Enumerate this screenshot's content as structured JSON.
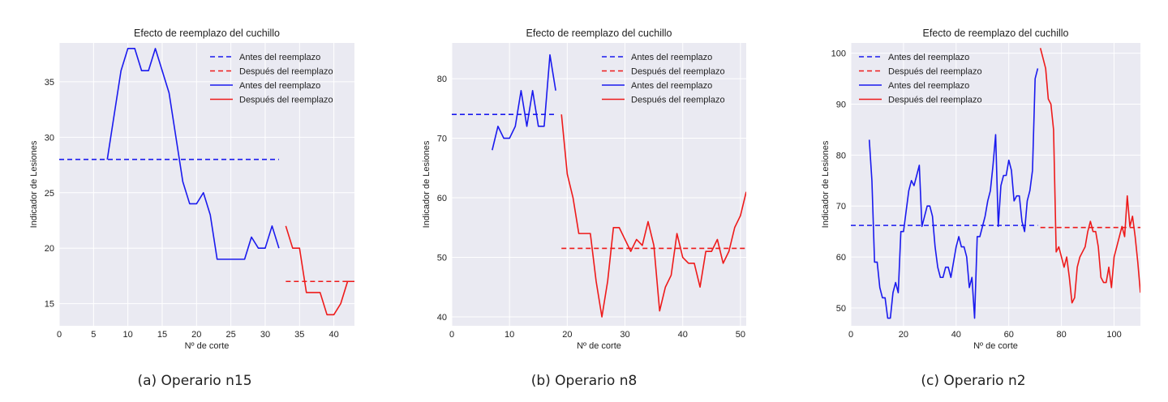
{
  "chart_data": [
    {
      "type": "line",
      "title": "Efecto de reemplazo del cuchillo",
      "xlabel": "Nº de corte",
      "ylabel": "Indicador de Lesiones",
      "xlim": [
        0,
        43
      ],
      "ylim": [
        13,
        38.5
      ],
      "xticks": [
        0,
        5,
        10,
        15,
        20,
        25,
        30,
        35,
        40
      ],
      "yticks": [
        15,
        20,
        25,
        30,
        35
      ],
      "legend": [
        "Antes del reemplazo",
        "Después del reemplazo",
        "Antes del reemplazo",
        "Después del reemplazo"
      ],
      "legend_position": "top-right",
      "colors": {
        "before": "#1a1aee",
        "after": "#ee1a1a"
      },
      "series": [
        {
          "name": "Antes del reemplazo",
          "style": "dashed",
          "color": "before",
          "x": [
            0,
            32
          ],
          "y": [
            28,
            28
          ]
        },
        {
          "name": "Después del reemplazo",
          "style": "dashed",
          "color": "after",
          "x": [
            33,
            43
          ],
          "y": [
            17,
            17
          ]
        },
        {
          "name": "Antes del reemplazo",
          "style": "solid",
          "color": "before",
          "x": [
            7,
            8,
            9,
            10,
            11,
            12,
            13,
            14,
            15,
            16,
            17,
            18,
            19,
            20,
            21,
            22,
            23,
            24,
            25,
            26,
            27,
            28,
            29,
            30,
            31,
            32
          ],
          "y": [
            28,
            32,
            36,
            38,
            38,
            36,
            36,
            38,
            36,
            34,
            30,
            26,
            24,
            24,
            25,
            23,
            19,
            19,
            19,
            19,
            19,
            21,
            20,
            20,
            22,
            20
          ]
        },
        {
          "name": "Después del reemplazo",
          "style": "solid",
          "color": "after",
          "x": [
            33,
            34,
            35,
            36,
            37,
            38,
            39,
            40,
            41,
            42,
            43
          ],
          "y": [
            22,
            20,
            20,
            16,
            16,
            16,
            14,
            14,
            15,
            17,
            17
          ]
        }
      ],
      "caption": "(a) Operario n15"
    },
    {
      "type": "line",
      "title": "Efecto de reemplazo del cuchillo",
      "xlabel": "Nº de corte",
      "ylabel": "Indicador de Lesiones",
      "xlim": [
        0,
        51
      ],
      "ylim": [
        38.5,
        86
      ],
      "xticks": [
        0,
        10,
        20,
        30,
        40,
        50
      ],
      "yticks": [
        40,
        50,
        60,
        70,
        80
      ],
      "legend": [
        "Antes del reemplazo",
        "Después del reemplazo",
        "Antes del reemplazo",
        "Después del reemplazo"
      ],
      "legend_position": "top-right",
      "colors": {
        "before": "#1a1aee",
        "after": "#ee1a1a"
      },
      "series": [
        {
          "name": "Antes del reemplazo",
          "style": "dashed",
          "color": "before",
          "x": [
            0,
            18
          ],
          "y": [
            74,
            74
          ]
        },
        {
          "name": "Después del reemplazo",
          "style": "dashed",
          "color": "after",
          "x": [
            19,
            51
          ],
          "y": [
            51.5,
            51.5
          ]
        },
        {
          "name": "Antes del reemplazo",
          "style": "solid",
          "color": "before",
          "x": [
            7,
            8,
            9,
            10,
            11,
            12,
            13,
            14,
            15,
            16,
            17,
            18
          ],
          "y": [
            68,
            72,
            70,
            70,
            72,
            78,
            72,
            78,
            72,
            72,
            84,
            78
          ]
        },
        {
          "name": "Después del reemplazo",
          "style": "solid",
          "color": "after",
          "x": [
            19,
            20,
            21,
            22,
            23,
            24,
            25,
            26,
            27,
            28,
            29,
            30,
            31,
            32,
            33,
            34,
            35,
            36,
            37,
            38,
            39,
            40,
            41,
            42,
            43,
            44,
            45,
            46,
            47,
            48,
            49,
            50,
            51
          ],
          "y": [
            74,
            64,
            60,
            54,
            54,
            54,
            46,
            40,
            46,
            55,
            55,
            53,
            51,
            53,
            52,
            56,
            52,
            41,
            45,
            47,
            54,
            50,
            49,
            49,
            45,
            51,
            51,
            53,
            49,
            51,
            55,
            57,
            61
          ]
        }
      ],
      "caption": "(b) Operario n8"
    },
    {
      "type": "line",
      "title": "Efecto de reemplazo del cuchillo",
      "xlabel": "Nº de corte",
      "ylabel": "Indicador de Lesiones",
      "xlim": [
        0,
        110
      ],
      "ylim": [
        46.5,
        102
      ],
      "xticks": [
        0,
        20,
        40,
        60,
        80,
        100
      ],
      "yticks": [
        50,
        60,
        70,
        80,
        90,
        100
      ],
      "legend": [
        "Antes del reemplazo",
        "Después del reemplazo",
        "Antes del reemplazo",
        "Después del reemplazo"
      ],
      "legend_position": "top-left",
      "colors": {
        "before": "#1a1aee",
        "after": "#ee1a1a"
      },
      "series": [
        {
          "name": "Antes del reemplazo",
          "style": "dashed",
          "color": "before",
          "x": [
            0,
            71
          ],
          "y": [
            66.2,
            66.2
          ]
        },
        {
          "name": "Después del reemplazo",
          "style": "dashed",
          "color": "after",
          "x": [
            72,
            110
          ],
          "y": [
            65.8,
            65.8
          ]
        },
        {
          "name": "Antes del reemplazo",
          "style": "solid",
          "color": "before",
          "x": [
            7,
            8,
            9,
            10,
            11,
            12,
            13,
            14,
            15,
            16,
            17,
            18,
            19,
            20,
            21,
            22,
            23,
            24,
            25,
            26,
            27,
            28,
            29,
            30,
            31,
            32,
            33,
            34,
            35,
            36,
            37,
            38,
            39,
            40,
            41,
            42,
            43,
            44,
            45,
            46,
            47,
            48,
            49,
            50,
            51,
            52,
            53,
            54,
            55,
            56,
            57,
            58,
            59,
            60,
            61,
            62,
            63,
            64,
            65,
            66,
            67,
            68,
            69,
            70,
            71
          ],
          "y": [
            83,
            75,
            59,
            59,
            54,
            52,
            52,
            48,
            48,
            53,
            55,
            53,
            65,
            65,
            69,
            73,
            75,
            74,
            76,
            78,
            66,
            68,
            70,
            70,
            68,
            62,
            58,
            56,
            56,
            58,
            58,
            56,
            59,
            62,
            64,
            62,
            62,
            60,
            54,
            56,
            48,
            64,
            64,
            66,
            68,
            71,
            73,
            78,
            84,
            66,
            74,
            76,
            76,
            79,
            77,
            71,
            72,
            72,
            67,
            65,
            71,
            73,
            77,
            95,
            97
          ]
        },
        {
          "name": "Después del reemplazo",
          "style": "solid",
          "color": "after",
          "x": [
            72,
            73,
            74,
            75,
            76,
            77,
            78,
            79,
            80,
            81,
            82,
            83,
            84,
            85,
            86,
            87,
            88,
            89,
            90,
            91,
            92,
            93,
            94,
            95,
            96,
            97,
            98,
            99,
            100,
            101,
            102,
            103,
            104,
            105,
            106,
            107,
            108,
            109,
            110
          ],
          "y": [
            101,
            99,
            97,
            91,
            90,
            85,
            61,
            62,
            60,
            58,
            60,
            56,
            51,
            52,
            58,
            60,
            61,
            62,
            65,
            67,
            65,
            65,
            62,
            56,
            55,
            55,
            58,
            54,
            60,
            62,
            64,
            66,
            64,
            72,
            66,
            68,
            64,
            59,
            53
          ]
        }
      ],
      "caption": "(c) Operario n2"
    }
  ]
}
